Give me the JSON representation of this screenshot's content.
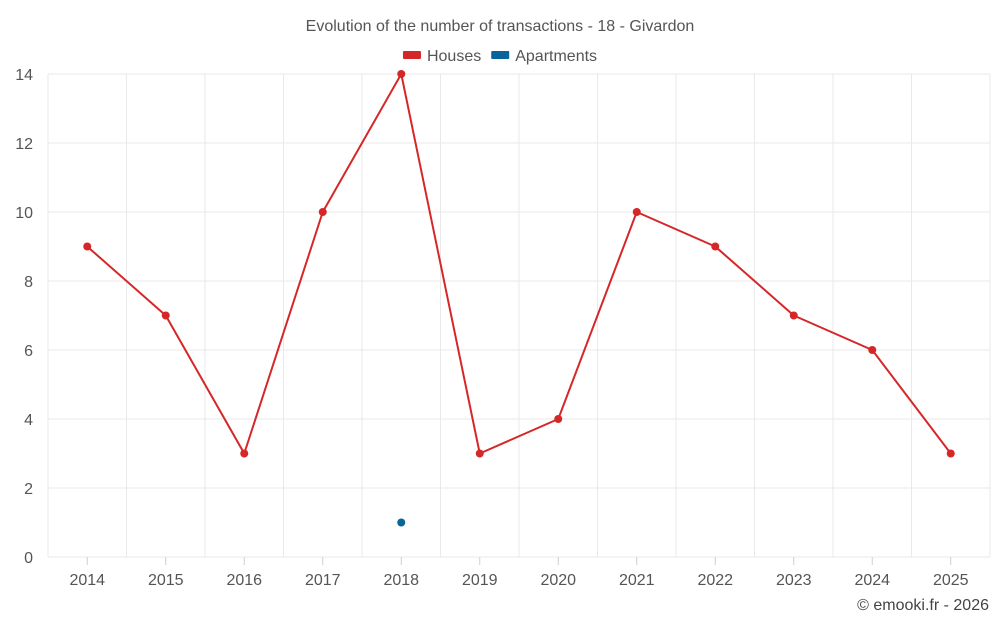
{
  "chart_data": {
    "type": "line",
    "title": "Evolution of the number of transactions - 18 - Givardon",
    "categories": [
      "2014",
      "2015",
      "2016",
      "2017",
      "2018",
      "2019",
      "2020",
      "2021",
      "2022",
      "2023",
      "2024",
      "2025"
    ],
    "series": [
      {
        "name": "Houses",
        "color": "#d62728",
        "values": [
          9,
          7,
          3,
          10,
          14,
          3,
          4,
          10,
          9,
          7,
          6,
          3
        ]
      },
      {
        "name": "Apartments",
        "color": "#08659a",
        "values": [
          null,
          null,
          null,
          null,
          1,
          null,
          null,
          null,
          null,
          null,
          null,
          null
        ]
      }
    ],
    "ylim": [
      0,
      14
    ],
    "yticks": [
      0,
      2,
      4,
      6,
      8,
      10,
      12,
      14
    ],
    "grid": true,
    "legend": "top-center",
    "xlabel": "",
    "ylabel": ""
  },
  "footer": {
    "credit": "© emooki.fr - 2026"
  }
}
